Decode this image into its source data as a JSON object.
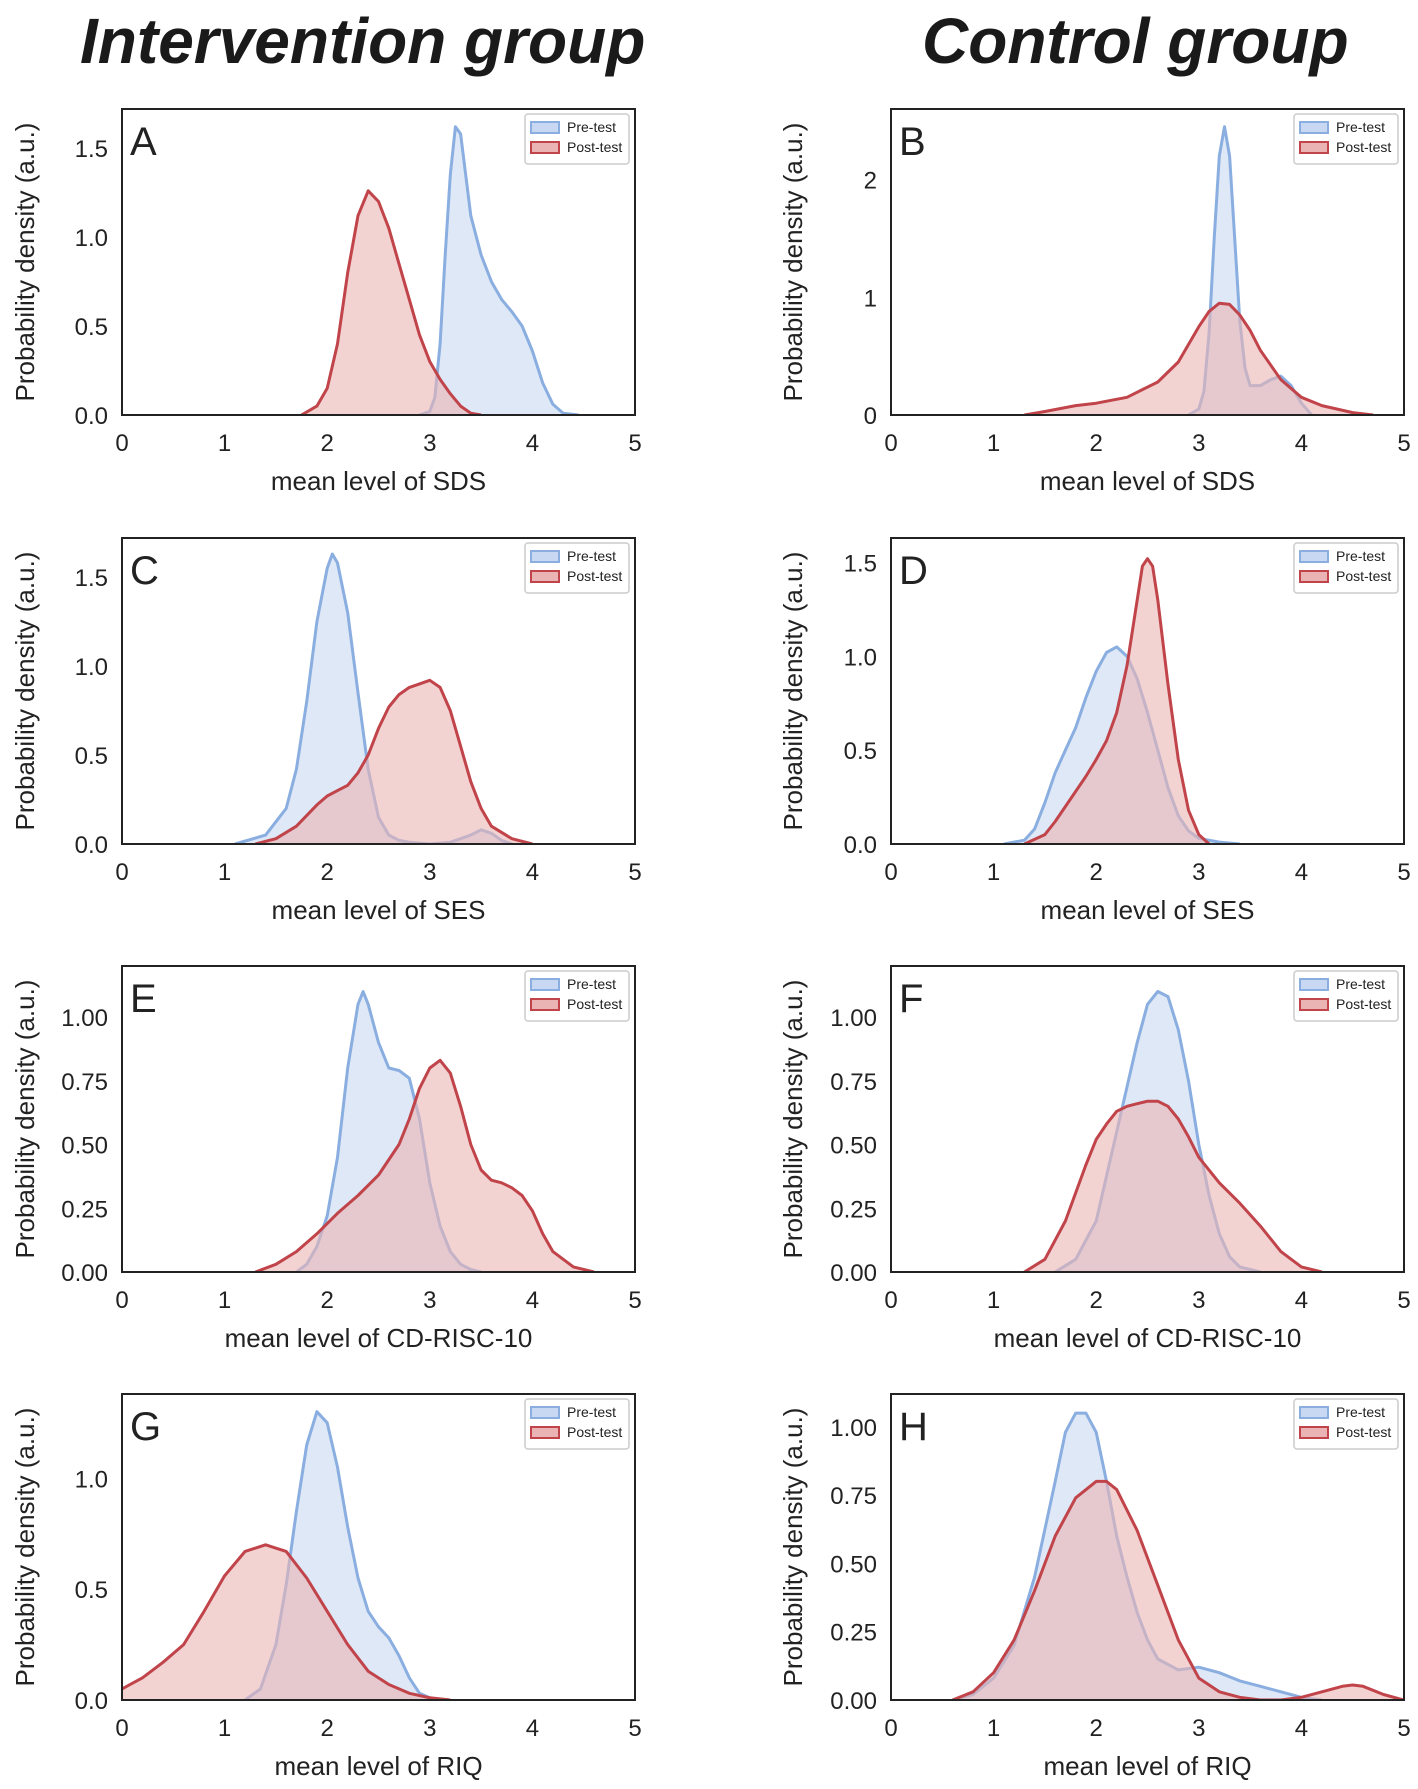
{
  "titles": {
    "left": "Intervention  group",
    "right": "Control group"
  },
  "colors": {
    "pre_line": "#8aaee0",
    "pre_fill": "#c8d8f2",
    "post_line": "#c0444a",
    "post_fill": "#ebb4b4",
    "axis": "#222222"
  },
  "chart_data": [
    {
      "panel": "A",
      "type": "area",
      "group": "Intervention group",
      "xlabel": "mean level of SDS",
      "ylabel": "Probability density (a.u.)",
      "xlim": [
        0,
        5
      ],
      "ylim": [
        0,
        1.72
      ],
      "xticks": [
        0,
        1,
        2,
        3,
        4,
        5
      ],
      "yticks": [
        0,
        0.5,
        1,
        1.5
      ],
      "ytick_labels": [
        "0.0",
        "0.5",
        "1.0",
        "1.5"
      ],
      "legend": [
        "Pre-test",
        "Post-test"
      ],
      "series": [
        {
          "name": "Pre-test",
          "x": [
            2.9,
            3.0,
            3.05,
            3.1,
            3.15,
            3.2,
            3.25,
            3.3,
            3.35,
            3.4,
            3.5,
            3.6,
            3.7,
            3.8,
            3.9,
            4.0,
            4.1,
            4.2,
            4.3,
            4.45
          ],
          "y": [
            0.0,
            0.02,
            0.1,
            0.4,
            0.9,
            1.35,
            1.62,
            1.58,
            1.35,
            1.12,
            0.9,
            0.75,
            0.65,
            0.58,
            0.5,
            0.36,
            0.18,
            0.06,
            0.01,
            0.0
          ]
        },
        {
          "name": "Post-test",
          "x": [
            1.75,
            1.9,
            2.0,
            2.1,
            2.2,
            2.3,
            2.4,
            2.5,
            2.6,
            2.7,
            2.8,
            2.9,
            3.0,
            3.1,
            3.2,
            3.3,
            3.4,
            3.5
          ],
          "y": [
            0.0,
            0.05,
            0.15,
            0.4,
            0.8,
            1.12,
            1.26,
            1.2,
            1.05,
            0.85,
            0.65,
            0.45,
            0.3,
            0.2,
            0.12,
            0.05,
            0.01,
            0.0
          ]
        }
      ]
    },
    {
      "panel": "B",
      "type": "area",
      "group": "Control group",
      "xlabel": "mean level of SDS",
      "ylabel": "Probability density (a.u.)",
      "xlim": [
        0,
        5
      ],
      "ylim": [
        0,
        2.6
      ],
      "xticks": [
        0,
        1,
        2,
        3,
        4,
        5
      ],
      "yticks": [
        0,
        1,
        2
      ],
      "ytick_labels": [
        "0",
        "1",
        "2"
      ],
      "legend": [
        "Pre-test",
        "Post-test"
      ],
      "series": [
        {
          "name": "Pre-test",
          "x": [
            2.9,
            3.0,
            3.05,
            3.1,
            3.15,
            3.2,
            3.25,
            3.3,
            3.35,
            3.4,
            3.45,
            3.5,
            3.6,
            3.7,
            3.8,
            3.9,
            4.0,
            4.1
          ],
          "y": [
            0.0,
            0.05,
            0.2,
            0.7,
            1.5,
            2.2,
            2.45,
            2.2,
            1.5,
            0.8,
            0.4,
            0.25,
            0.25,
            0.3,
            0.33,
            0.25,
            0.1,
            0.0
          ]
        },
        {
          "name": "Post-test",
          "x": [
            1.3,
            1.5,
            1.8,
            2.0,
            2.3,
            2.6,
            2.8,
            3.0,
            3.1,
            3.2,
            3.3,
            3.4,
            3.5,
            3.6,
            3.8,
            4.0,
            4.2,
            4.5,
            4.7
          ],
          "y": [
            0.0,
            0.03,
            0.08,
            0.1,
            0.15,
            0.28,
            0.45,
            0.75,
            0.88,
            0.95,
            0.94,
            0.85,
            0.72,
            0.55,
            0.3,
            0.15,
            0.08,
            0.02,
            0.0
          ]
        }
      ]
    },
    {
      "panel": "C",
      "type": "area",
      "group": "Intervention group",
      "xlabel": "mean level of SES",
      "ylabel": "Probability density (a.u.)",
      "xlim": [
        0,
        5
      ],
      "ylim": [
        0,
        1.72
      ],
      "xticks": [
        0,
        1,
        2,
        3,
        4,
        5
      ],
      "yticks": [
        0,
        0.5,
        1,
        1.5
      ],
      "ytick_labels": [
        "0.0",
        "0.5",
        "1.0",
        "1.5"
      ],
      "legend": [
        "Pre-test",
        "Post-test"
      ],
      "series": [
        {
          "name": "Pre-test",
          "x": [
            1.1,
            1.4,
            1.6,
            1.7,
            1.8,
            1.9,
            2.0,
            2.05,
            2.1,
            2.2,
            2.3,
            2.4,
            2.5,
            2.6,
            2.7,
            2.8,
            3.0,
            3.2,
            3.3,
            3.4,
            3.5,
            3.6,
            3.7,
            3.8
          ],
          "y": [
            0.0,
            0.05,
            0.2,
            0.42,
            0.8,
            1.25,
            1.55,
            1.63,
            1.58,
            1.3,
            0.85,
            0.42,
            0.15,
            0.05,
            0.02,
            0.01,
            0.0,
            0.01,
            0.03,
            0.05,
            0.08,
            0.06,
            0.02,
            0.0
          ]
        },
        {
          "name": "Post-test",
          "x": [
            1.3,
            1.5,
            1.7,
            1.9,
            2.0,
            2.1,
            2.2,
            2.3,
            2.4,
            2.5,
            2.6,
            2.7,
            2.8,
            2.9,
            3.0,
            3.1,
            3.2,
            3.3,
            3.4,
            3.5,
            3.6,
            3.8,
            4.0
          ],
          "y": [
            0.0,
            0.03,
            0.1,
            0.22,
            0.27,
            0.3,
            0.33,
            0.4,
            0.5,
            0.65,
            0.77,
            0.84,
            0.88,
            0.9,
            0.92,
            0.88,
            0.75,
            0.55,
            0.35,
            0.2,
            0.1,
            0.03,
            0.0
          ]
        }
      ]
    },
    {
      "panel": "D",
      "type": "area",
      "group": "Control group",
      "xlabel": "mean level of SES",
      "ylabel": "Probability density (a.u.)",
      "xlim": [
        0,
        5
      ],
      "ylim": [
        0,
        1.63
      ],
      "xticks": [
        0,
        1,
        2,
        3,
        4,
        5
      ],
      "yticks": [
        0,
        0.5,
        1,
        1.5
      ],
      "ytick_labels": [
        "0.0",
        "0.5",
        "1.0",
        "1.5"
      ],
      "legend": [
        "Pre-test",
        "Post-test"
      ],
      "series": [
        {
          "name": "Pre-test",
          "x": [
            1.1,
            1.3,
            1.4,
            1.5,
            1.6,
            1.7,
            1.8,
            1.9,
            2.0,
            2.1,
            2.2,
            2.3,
            2.4,
            2.5,
            2.6,
            2.7,
            2.8,
            2.9,
            3.0,
            3.2,
            3.4
          ],
          "y": [
            0.0,
            0.02,
            0.08,
            0.22,
            0.38,
            0.5,
            0.62,
            0.78,
            0.92,
            1.02,
            1.05,
            1.0,
            0.88,
            0.7,
            0.5,
            0.3,
            0.15,
            0.07,
            0.03,
            0.01,
            0.0
          ]
        },
        {
          "name": "Post-test",
          "x": [
            1.3,
            1.5,
            1.6,
            1.7,
            1.8,
            1.9,
            2.0,
            2.1,
            2.2,
            2.3,
            2.4,
            2.45,
            2.5,
            2.55,
            2.6,
            2.7,
            2.8,
            2.9,
            3.0,
            3.1
          ],
          "y": [
            0.0,
            0.05,
            0.12,
            0.2,
            0.28,
            0.36,
            0.45,
            0.55,
            0.7,
            0.95,
            1.3,
            1.48,
            1.52,
            1.48,
            1.3,
            0.85,
            0.45,
            0.18,
            0.05,
            0.0
          ]
        }
      ]
    },
    {
      "panel": "E",
      "type": "area",
      "group": "Intervention group",
      "xlabel": "mean level of CD-RISC-10",
      "ylabel": "Probability density (a.u.)",
      "xlim": [
        0,
        5
      ],
      "ylim": [
        0,
        1.2
      ],
      "xticks": [
        0,
        1,
        2,
        3,
        4,
        5
      ],
      "yticks": [
        0,
        0.25,
        0.5,
        0.75,
        1.0
      ],
      "ytick_labels": [
        "0.00",
        "0.25",
        "0.50",
        "0.75",
        "1.00"
      ],
      "legend": [
        "Pre-test",
        "Post-test"
      ],
      "series": [
        {
          "name": "Pre-test",
          "x": [
            1.7,
            1.8,
            1.9,
            2.0,
            2.1,
            2.2,
            2.3,
            2.35,
            2.4,
            2.5,
            2.6,
            2.7,
            2.8,
            2.9,
            3.0,
            3.1,
            3.2,
            3.3,
            3.4,
            3.5
          ],
          "y": [
            0.0,
            0.03,
            0.1,
            0.22,
            0.45,
            0.8,
            1.05,
            1.1,
            1.05,
            0.9,
            0.8,
            0.79,
            0.76,
            0.6,
            0.35,
            0.18,
            0.08,
            0.03,
            0.01,
            0.0
          ]
        },
        {
          "name": "Post-test",
          "x": [
            1.3,
            1.5,
            1.7,
            1.9,
            2.1,
            2.3,
            2.5,
            2.7,
            2.8,
            2.9,
            3.0,
            3.1,
            3.2,
            3.3,
            3.4,
            3.5,
            3.6,
            3.7,
            3.8,
            3.9,
            4.0,
            4.1,
            4.2,
            4.4,
            4.6
          ],
          "y": [
            0.0,
            0.03,
            0.08,
            0.15,
            0.23,
            0.3,
            0.38,
            0.5,
            0.6,
            0.72,
            0.8,
            0.83,
            0.78,
            0.65,
            0.5,
            0.4,
            0.36,
            0.35,
            0.33,
            0.3,
            0.24,
            0.15,
            0.08,
            0.02,
            0.0
          ]
        }
      ]
    },
    {
      "panel": "F",
      "type": "area",
      "group": "Control group",
      "xlabel": "mean level of CD-RISC-10",
      "ylabel": "Probability density (a.u.)",
      "xlim": [
        0,
        5
      ],
      "ylim": [
        0,
        1.2
      ],
      "xticks": [
        0,
        1,
        2,
        3,
        4,
        5
      ],
      "yticks": [
        0,
        0.25,
        0.5,
        0.75,
        1.0
      ],
      "ytick_labels": [
        "0.00",
        "0.25",
        "0.50",
        "0.75",
        "1.00"
      ],
      "legend": [
        "Pre-test",
        "Post-test"
      ],
      "series": [
        {
          "name": "Pre-test",
          "x": [
            1.6,
            1.8,
            2.0,
            2.2,
            2.4,
            2.5,
            2.6,
            2.7,
            2.8,
            2.9,
            3.0,
            3.1,
            3.2,
            3.3,
            3.4,
            3.6
          ],
          "y": [
            0.0,
            0.05,
            0.2,
            0.55,
            0.9,
            1.05,
            1.1,
            1.08,
            0.95,
            0.75,
            0.5,
            0.3,
            0.15,
            0.06,
            0.02,
            0.0
          ]
        },
        {
          "name": "Post-test",
          "x": [
            1.3,
            1.5,
            1.7,
            1.9,
            2.0,
            2.1,
            2.2,
            2.3,
            2.4,
            2.5,
            2.6,
            2.7,
            2.8,
            2.9,
            3.0,
            3.2,
            3.4,
            3.6,
            3.8,
            4.0,
            4.2
          ],
          "y": [
            0.0,
            0.05,
            0.2,
            0.42,
            0.52,
            0.58,
            0.63,
            0.65,
            0.66,
            0.67,
            0.67,
            0.65,
            0.6,
            0.53,
            0.45,
            0.35,
            0.27,
            0.18,
            0.08,
            0.02,
            0.0
          ]
        }
      ]
    },
    {
      "panel": "G",
      "type": "area",
      "group": "Intervention group",
      "xlabel": "mean level of RIQ",
      "ylabel": "Probability density (a.u.)",
      "xlim": [
        0,
        5
      ],
      "ylim": [
        0,
        1.38
      ],
      "xticks": [
        0,
        1,
        2,
        3,
        4,
        5
      ],
      "yticks": [
        0,
        0.5,
        1.0
      ],
      "ytick_labels": [
        "0.0",
        "0.5",
        "1.0"
      ],
      "legend": [
        "Pre-test",
        "Post-test"
      ],
      "series": [
        {
          "name": "Pre-test",
          "x": [
            1.2,
            1.35,
            1.5,
            1.6,
            1.7,
            1.8,
            1.9,
            2.0,
            2.1,
            2.2,
            2.3,
            2.4,
            2.5,
            2.6,
            2.7,
            2.8,
            2.9,
            3.0,
            3.1
          ],
          "y": [
            0.0,
            0.05,
            0.25,
            0.52,
            0.85,
            1.15,
            1.3,
            1.25,
            1.05,
            0.78,
            0.55,
            0.4,
            0.33,
            0.28,
            0.2,
            0.1,
            0.03,
            0.01,
            0.0
          ]
        },
        {
          "name": "Post-test",
          "x": [
            0.0,
            0.2,
            0.4,
            0.6,
            0.8,
            1.0,
            1.2,
            1.4,
            1.6,
            1.8,
            2.0,
            2.2,
            2.4,
            2.6,
            2.8,
            3.0,
            3.2
          ],
          "y": [
            0.05,
            0.1,
            0.17,
            0.25,
            0.4,
            0.56,
            0.67,
            0.7,
            0.67,
            0.55,
            0.4,
            0.25,
            0.13,
            0.07,
            0.03,
            0.01,
            0.0
          ]
        }
      ]
    },
    {
      "panel": "H",
      "type": "area",
      "group": "Control group",
      "xlabel": "mean level of RIQ",
      "ylabel": "Probability density (a.u.)",
      "xlim": [
        0,
        5
      ],
      "ylim": [
        0,
        1.12
      ],
      "xticks": [
        0,
        1,
        2,
        3,
        4,
        5
      ],
      "yticks": [
        0,
        0.25,
        0.5,
        0.75,
        1.0
      ],
      "ytick_labels": [
        "0.00",
        "0.25",
        "0.50",
        "0.75",
        "1.00"
      ],
      "legend": [
        "Pre-test",
        "Post-test"
      ],
      "series": [
        {
          "name": "Pre-test",
          "x": [
            0.6,
            0.8,
            1.0,
            1.2,
            1.4,
            1.6,
            1.7,
            1.8,
            1.9,
            2.0,
            2.1,
            2.2,
            2.3,
            2.4,
            2.5,
            2.6,
            2.8,
            3.0,
            3.2,
            3.4,
            3.6,
            3.8,
            4.0,
            4.2
          ],
          "y": [
            0.0,
            0.02,
            0.08,
            0.2,
            0.45,
            0.8,
            0.98,
            1.05,
            1.05,
            0.98,
            0.8,
            0.6,
            0.45,
            0.32,
            0.22,
            0.15,
            0.11,
            0.12,
            0.1,
            0.07,
            0.05,
            0.03,
            0.01,
            0.0
          ]
        },
        {
          "name": "Post-test",
          "x": [
            0.6,
            0.8,
            1.0,
            1.2,
            1.4,
            1.6,
            1.8,
            2.0,
            2.1,
            2.2,
            2.4,
            2.6,
            2.8,
            3.0,
            3.2,
            3.4,
            3.6,
            3.8,
            4.0,
            4.2,
            4.4,
            4.5,
            4.6,
            4.8,
            5.0
          ],
          "y": [
            0.0,
            0.03,
            0.1,
            0.22,
            0.4,
            0.6,
            0.74,
            0.8,
            0.8,
            0.77,
            0.62,
            0.42,
            0.22,
            0.08,
            0.03,
            0.01,
            0.0,
            0.0,
            0.01,
            0.03,
            0.05,
            0.055,
            0.05,
            0.02,
            0.0
          ]
        }
      ]
    }
  ]
}
